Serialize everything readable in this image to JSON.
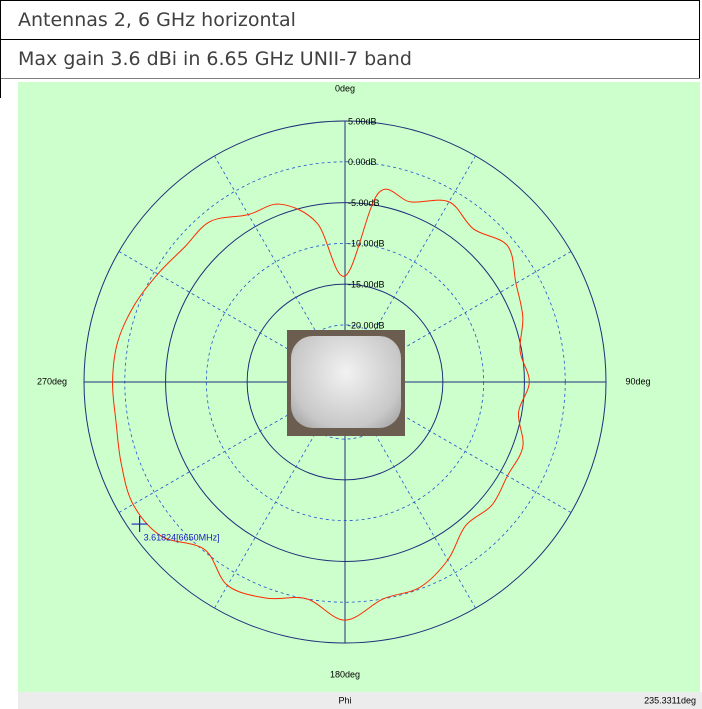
{
  "header": {
    "line1": "Antennas 2, 6 GHz horizontal",
    "line2": "Max gain 3.6 dBi in 6.65 GHz UNII-7 band"
  },
  "chart_data": {
    "type": "polar",
    "theta": [
      0,
      10,
      20,
      30,
      40,
      50,
      60,
      70,
      80,
      90,
      100,
      110,
      120,
      130,
      140,
      150,
      160,
      170,
      180,
      190,
      200,
      210,
      220,
      230,
      240,
      250,
      260,
      270,
      280,
      290,
      300,
      310,
      320,
      330,
      340,
      350
    ],
    "series": [
      {
        "color": "#ff2a00",
        "values": [
          -14,
          -3.5,
          -3.5,
          -1.5,
          -2.5,
          -1,
          -2.8,
          -3.8,
          -5.2,
          -4.4,
          -5.4,
          -3.8,
          -4,
          -3.5,
          -4,
          -1.8,
          -0.2,
          0,
          2.2,
          0,
          1.2,
          1.8,
          -0.2,
          2.4,
          3,
          2.2,
          1.5,
          1.5,
          1.3,
          0.5,
          -0.5,
          -1.3,
          -1.3,
          -3.3,
          -3.8,
          -7.2
        ]
      }
    ],
    "rlim": [
      -27,
      5
    ],
    "rticks": [
      {
        "value": 5,
        "label": "5.00dB"
      },
      {
        "value": 0,
        "label": "0.00dB"
      },
      {
        "value": -5,
        "label": "-5.00dB"
      },
      {
        "value": -10,
        "label": "-10.00dB"
      },
      {
        "value": -15,
        "label": "-15.00dB"
      },
      {
        "value": -20,
        "label": "-20.00dB"
      }
    ],
    "thetaticks": [
      {
        "value": 0,
        "label": "0deg"
      },
      {
        "value": 90,
        "label": "90deg"
      },
      {
        "value": 180,
        "label": "180deg"
      },
      {
        "value": 270,
        "label": "270deg"
      }
    ],
    "marker": {
      "theta": 235.3311,
      "r": 3.61824,
      "label": "3.61824[6650MHz]",
      "color": "#2020c0"
    },
    "xlabel": "Phi",
    "status": "235.3311deg",
    "background": "#ccffcc"
  }
}
